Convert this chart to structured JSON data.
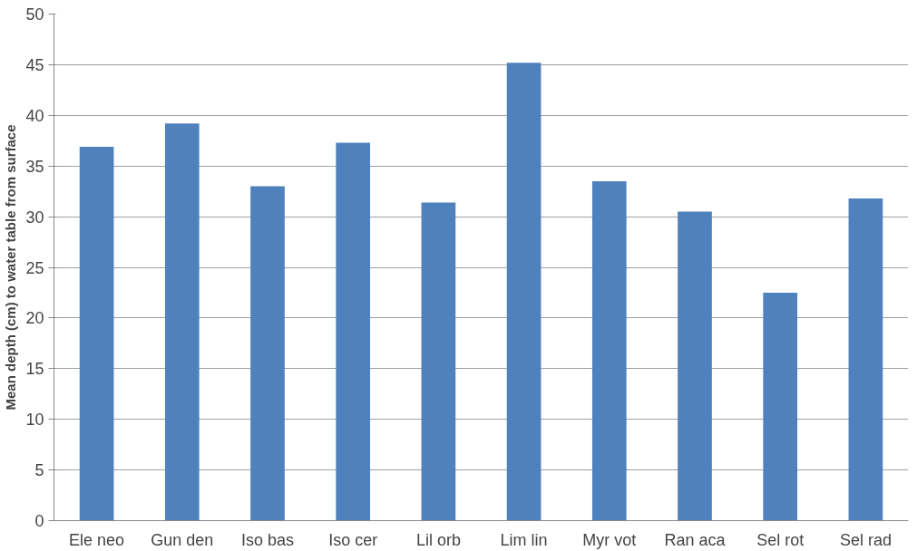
{
  "chart_data": {
    "type": "bar",
    "ylabel": "Mean depth (cm) to water table from surface",
    "categories": [
      "Ele neo",
      "Gun den",
      "Iso bas",
      "Iso cer",
      "Lil orb",
      "Lim lin",
      "Myr vot",
      "Ran aca",
      "Sel rot",
      "Sel rad"
    ],
    "values": [
      36.9,
      39.2,
      33.0,
      37.3,
      31.4,
      45.2,
      33.5,
      30.5,
      22.5,
      31.8
    ],
    "color": "#4f81bd",
    "ylim": [
      0,
      50
    ],
    "yticks": [
      0,
      5,
      10,
      15,
      20,
      25,
      30,
      35,
      40,
      45,
      50
    ],
    "grid": "y"
  }
}
